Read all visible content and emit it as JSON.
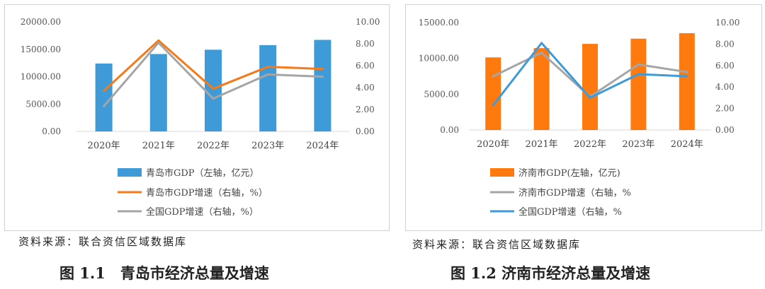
{
  "figures": [
    {
      "source_note": "资料来源：联合资信区域数据库",
      "caption": "图 1.1　青岛市经济总量及增速"
    },
    {
      "source_note": "资料来源：联合资信区域数据库",
      "caption": "图 1.2 济南市经济总量及增速"
    }
  ],
  "chart_data": [
    {
      "type": "bar",
      "categories": [
        "2020年",
        "2021年",
        "2022年",
        "2023年",
        "2024年"
      ],
      "ylim_left": [
        0,
        20000
      ],
      "yticks_left": [
        "0.00",
        "5000.00",
        "10000.00",
        "15000.00",
        "20000.00"
      ],
      "ylim_right": [
        0,
        10
      ],
      "yticks_right": [
        "0.00",
        "2.00",
        "4.00",
        "6.00",
        "8.00",
        "10.00"
      ],
      "grid": false,
      "legend_position": "bottom",
      "series": [
        {
          "name": "青岛市GDP（左轴，亿元）",
          "type": "bar",
          "axis": "left",
          "color": "#3F9BD8",
          "values": [
            12400,
            14136,
            14921,
            15760,
            16720
          ]
        },
        {
          "name": "青岛市GDP增速（右轴，%）",
          "type": "line",
          "axis": "right",
          "color": "#F57A19",
          "values": [
            3.7,
            8.3,
            3.9,
            5.9,
            5.7
          ]
        },
        {
          "name": "全国GDP增速（右轴，%）",
          "type": "line",
          "axis": "right",
          "color": "#A5A5A5",
          "values": [
            2.3,
            8.1,
            3.0,
            5.2,
            5.0
          ]
        }
      ]
    },
    {
      "type": "bar",
      "categories": [
        "2020年",
        "2021年",
        "2022年",
        "2023年",
        "2024年"
      ],
      "ylim_left": [
        0,
        15000
      ],
      "yticks_left": [
        "0.00",
        "5000.00",
        "10000.00",
        "15000.00"
      ],
      "ylim_right": [
        0,
        10
      ],
      "yticks_right": [
        "0.00",
        "2.00",
        "4.00",
        "6.00",
        "8.00",
        "10.00"
      ],
      "grid": false,
      "legend_position": "bottom",
      "series": [
        {
          "name": "济南市GDP(左轴，亿元)",
          "type": "bar",
          "axis": "left",
          "color": "#FF7A0E",
          "values": [
            10140,
            11432,
            12028,
            12757,
            13528
          ]
        },
        {
          "name": "济南市GDP增速（右轴，%",
          "type": "line",
          "axis": "right",
          "color": "#A5A5A5",
          "values": [
            5.0,
            7.2,
            3.1,
            6.1,
            5.4
          ]
        },
        {
          "name": "全国GDP增速（右轴，%",
          "type": "line",
          "axis": "right",
          "color": "#3F9BD8",
          "values": [
            2.3,
            8.1,
            3.0,
            5.2,
            5.0
          ]
        }
      ]
    }
  ]
}
